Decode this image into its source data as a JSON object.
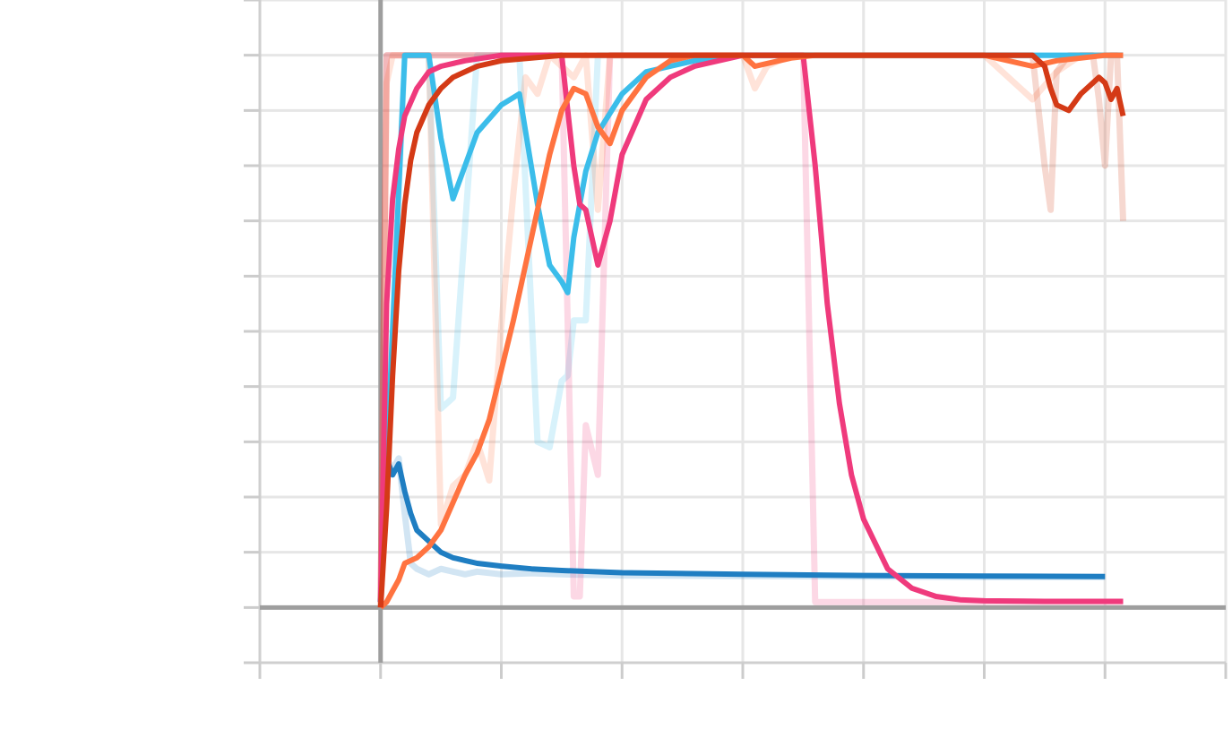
{
  "chart_data": {
    "type": "line",
    "title": "",
    "xlabel": "",
    "ylabel": "",
    "xlim": [
      -1,
      7
    ],
    "ylim": [
      -0.1,
      1.1
    ],
    "x_ticks": [
      -1,
      0,
      1,
      2,
      3,
      4,
      5,
      6,
      7
    ],
    "y_ticks": [
      -0.1,
      0,
      0.1,
      0.2,
      0.3,
      0.4,
      0.5,
      0.6,
      0.7,
      0.8,
      0.9,
      1.0,
      1.1
    ],
    "grid": true,
    "legend": "none",
    "series": [
      {
        "color": "#1f7ec2",
        "x": [
          0,
          0.05,
          0.1,
          0.15,
          0.2,
          0.25,
          0.3,
          0.4,
          0.5,
          0.6,
          0.7,
          0.8,
          1.0,
          1.25,
          1.5,
          2.0,
          3.0,
          4.0,
          5.0,
          6.0
        ],
        "values": [
          0.01,
          0.27,
          0.24,
          0.26,
          0.21,
          0.17,
          0.14,
          0.12,
          0.1,
          0.09,
          0.085,
          0.08,
          0.075,
          0.07,
          0.067,
          0.063,
          0.06,
          0.058,
          0.057,
          0.056
        ],
        "raw": [
          0.01,
          0.27,
          0.25,
          0.27,
          0.17,
          0.08,
          0.07,
          0.06,
          0.07,
          0.065,
          0.06,
          0.065,
          0.06,
          0.062,
          0.06,
          0.058,
          0.057,
          0.056,
          0.055,
          0.055
        ]
      },
      {
        "color": "#3bbdea",
        "x": [
          0,
          0.2,
          0.4,
          0.5,
          0.6,
          0.8,
          1.0,
          1.15,
          1.3,
          1.4,
          1.5,
          1.55,
          1.6,
          1.7,
          1.8,
          2.0,
          2.2,
          2.4,
          2.6,
          3.0,
          3.5,
          4.0,
          5.0,
          6.0,
          6.15
        ],
        "values": [
          0.01,
          1.0,
          1.0,
          0.85,
          0.74,
          0.86,
          0.91,
          0.93,
          0.73,
          0.62,
          0.59,
          0.57,
          0.67,
          0.79,
          0.86,
          0.93,
          0.97,
          0.98,
          0.99,
          1.0,
          1.0,
          1.0,
          1.0,
          1.0,
          1.0
        ],
        "raw": [
          0.01,
          1.0,
          1.0,
          0.36,
          0.38,
          1.0,
          1.0,
          1.0,
          0.3,
          0.29,
          0.41,
          0.42,
          0.52,
          0.52,
          1.0,
          1.0,
          1.0,
          1.0,
          1.0,
          1.0,
          1.0,
          1.0,
          1.0,
          1.0,
          1.0
        ]
      },
      {
        "color": "#ef3a7c",
        "x": [
          0,
          0.05,
          0.1,
          0.15,
          0.2,
          0.3,
          0.4,
          0.5,
          0.7,
          1.0,
          1.5,
          1.6,
          1.65,
          1.7,
          1.8,
          1.9,
          2.0,
          2.2,
          2.4,
          2.6,
          3.0,
          3.5,
          3.6,
          3.7,
          3.8,
          3.9,
          4.0,
          4.2,
          4.4,
          4.6,
          4.8,
          5.0,
          5.5,
          6.0,
          6.15
        ],
        "values": [
          0.01,
          0.55,
          0.74,
          0.83,
          0.89,
          0.94,
          0.97,
          0.98,
          0.99,
          1.0,
          1.0,
          0.8,
          0.73,
          0.72,
          0.62,
          0.7,
          0.82,
          0.92,
          0.96,
          0.98,
          1.0,
          1.0,
          0.8,
          0.55,
          0.37,
          0.24,
          0.16,
          0.07,
          0.035,
          0.02,
          0.014,
          0.012,
          0.011,
          0.011,
          0.011
        ],
        "raw": [
          0.01,
          1.0,
          1.0,
          1.0,
          1.0,
          1.0,
          1.0,
          1.0,
          1.0,
          1.0,
          1.0,
          0.02,
          0.02,
          0.33,
          0.24,
          1.0,
          1.0,
          1.0,
          1.0,
          1.0,
          1.0,
          1.0,
          0.01,
          0.01,
          0.01,
          0.01,
          0.01,
          0.01,
          0.01,
          0.01,
          0.01,
          0.01,
          0.01,
          0.01,
          0.01
        ]
      },
      {
        "color": "#ff7340",
        "x": [
          0,
          0.05,
          0.1,
          0.15,
          0.2,
          0.3,
          0.4,
          0.5,
          0.6,
          0.7,
          0.8,
          0.9,
          1.0,
          1.1,
          1.2,
          1.3,
          1.4,
          1.5,
          1.6,
          1.7,
          1.8,
          1.9,
          2.0,
          2.2,
          2.4,
          2.6,
          3.0,
          3.1,
          3.2,
          3.4,
          3.6,
          4.0,
          5.0,
          5.4,
          5.6,
          5.8,
          6.0,
          6.15
        ],
        "values": [
          0.0,
          0.01,
          0.03,
          0.05,
          0.08,
          0.09,
          0.11,
          0.14,
          0.19,
          0.24,
          0.28,
          0.34,
          0.43,
          0.52,
          0.62,
          0.72,
          0.82,
          0.9,
          0.94,
          0.93,
          0.87,
          0.84,
          0.9,
          0.96,
          0.99,
          1.0,
          1.0,
          0.98,
          0.985,
          0.995,
          1.0,
          1.0,
          1.0,
          0.98,
          0.99,
          0.995,
          1.0,
          1.0
        ],
        "raw": [
          0.0,
          0.95,
          1.0,
          1.0,
          1.0,
          1.0,
          1.0,
          0.15,
          0.22,
          0.24,
          0.3,
          0.23,
          0.51,
          0.75,
          0.96,
          0.93,
          1.0,
          0.98,
          0.96,
          1.0,
          0.72,
          1.0,
          1.0,
          1.0,
          1.0,
          1.0,
          1.0,
          0.94,
          0.98,
          1.0,
          1.0,
          1.0,
          1.0,
          0.92,
          0.97,
          1.0,
          1.0,
          1.0
        ]
      },
      {
        "color": "#d43a16",
        "x": [
          0,
          0.05,
          0.1,
          0.15,
          0.2,
          0.25,
          0.3,
          0.4,
          0.5,
          0.6,
          0.8,
          1.0,
          1.5,
          2.0,
          3.0,
          4.0,
          5.0,
          5.4,
          5.5,
          5.55,
          5.6,
          5.7,
          5.8,
          5.9,
          5.95,
          6.0,
          6.05,
          6.1,
          6.15
        ],
        "values": [
          0.0,
          0.18,
          0.42,
          0.61,
          0.73,
          0.81,
          0.86,
          0.91,
          0.94,
          0.96,
          0.98,
          0.99,
          1.0,
          1.0,
          1.0,
          1.0,
          1.0,
          1.0,
          0.98,
          0.94,
          0.91,
          0.9,
          0.93,
          0.95,
          0.96,
          0.95,
          0.92,
          0.94,
          0.89
        ],
        "raw": [
          0.0,
          1.0,
          1.0,
          1.0,
          1.0,
          1.0,
          1.0,
          1.0,
          1.0,
          1.0,
          1.0,
          1.0,
          1.0,
          1.0,
          1.0,
          1.0,
          1.0,
          1.0,
          0.8,
          0.72,
          0.97,
          1.0,
          1.0,
          1.0,
          0.92,
          0.8,
          1.0,
          1.0,
          0.7
        ]
      }
    ]
  }
}
